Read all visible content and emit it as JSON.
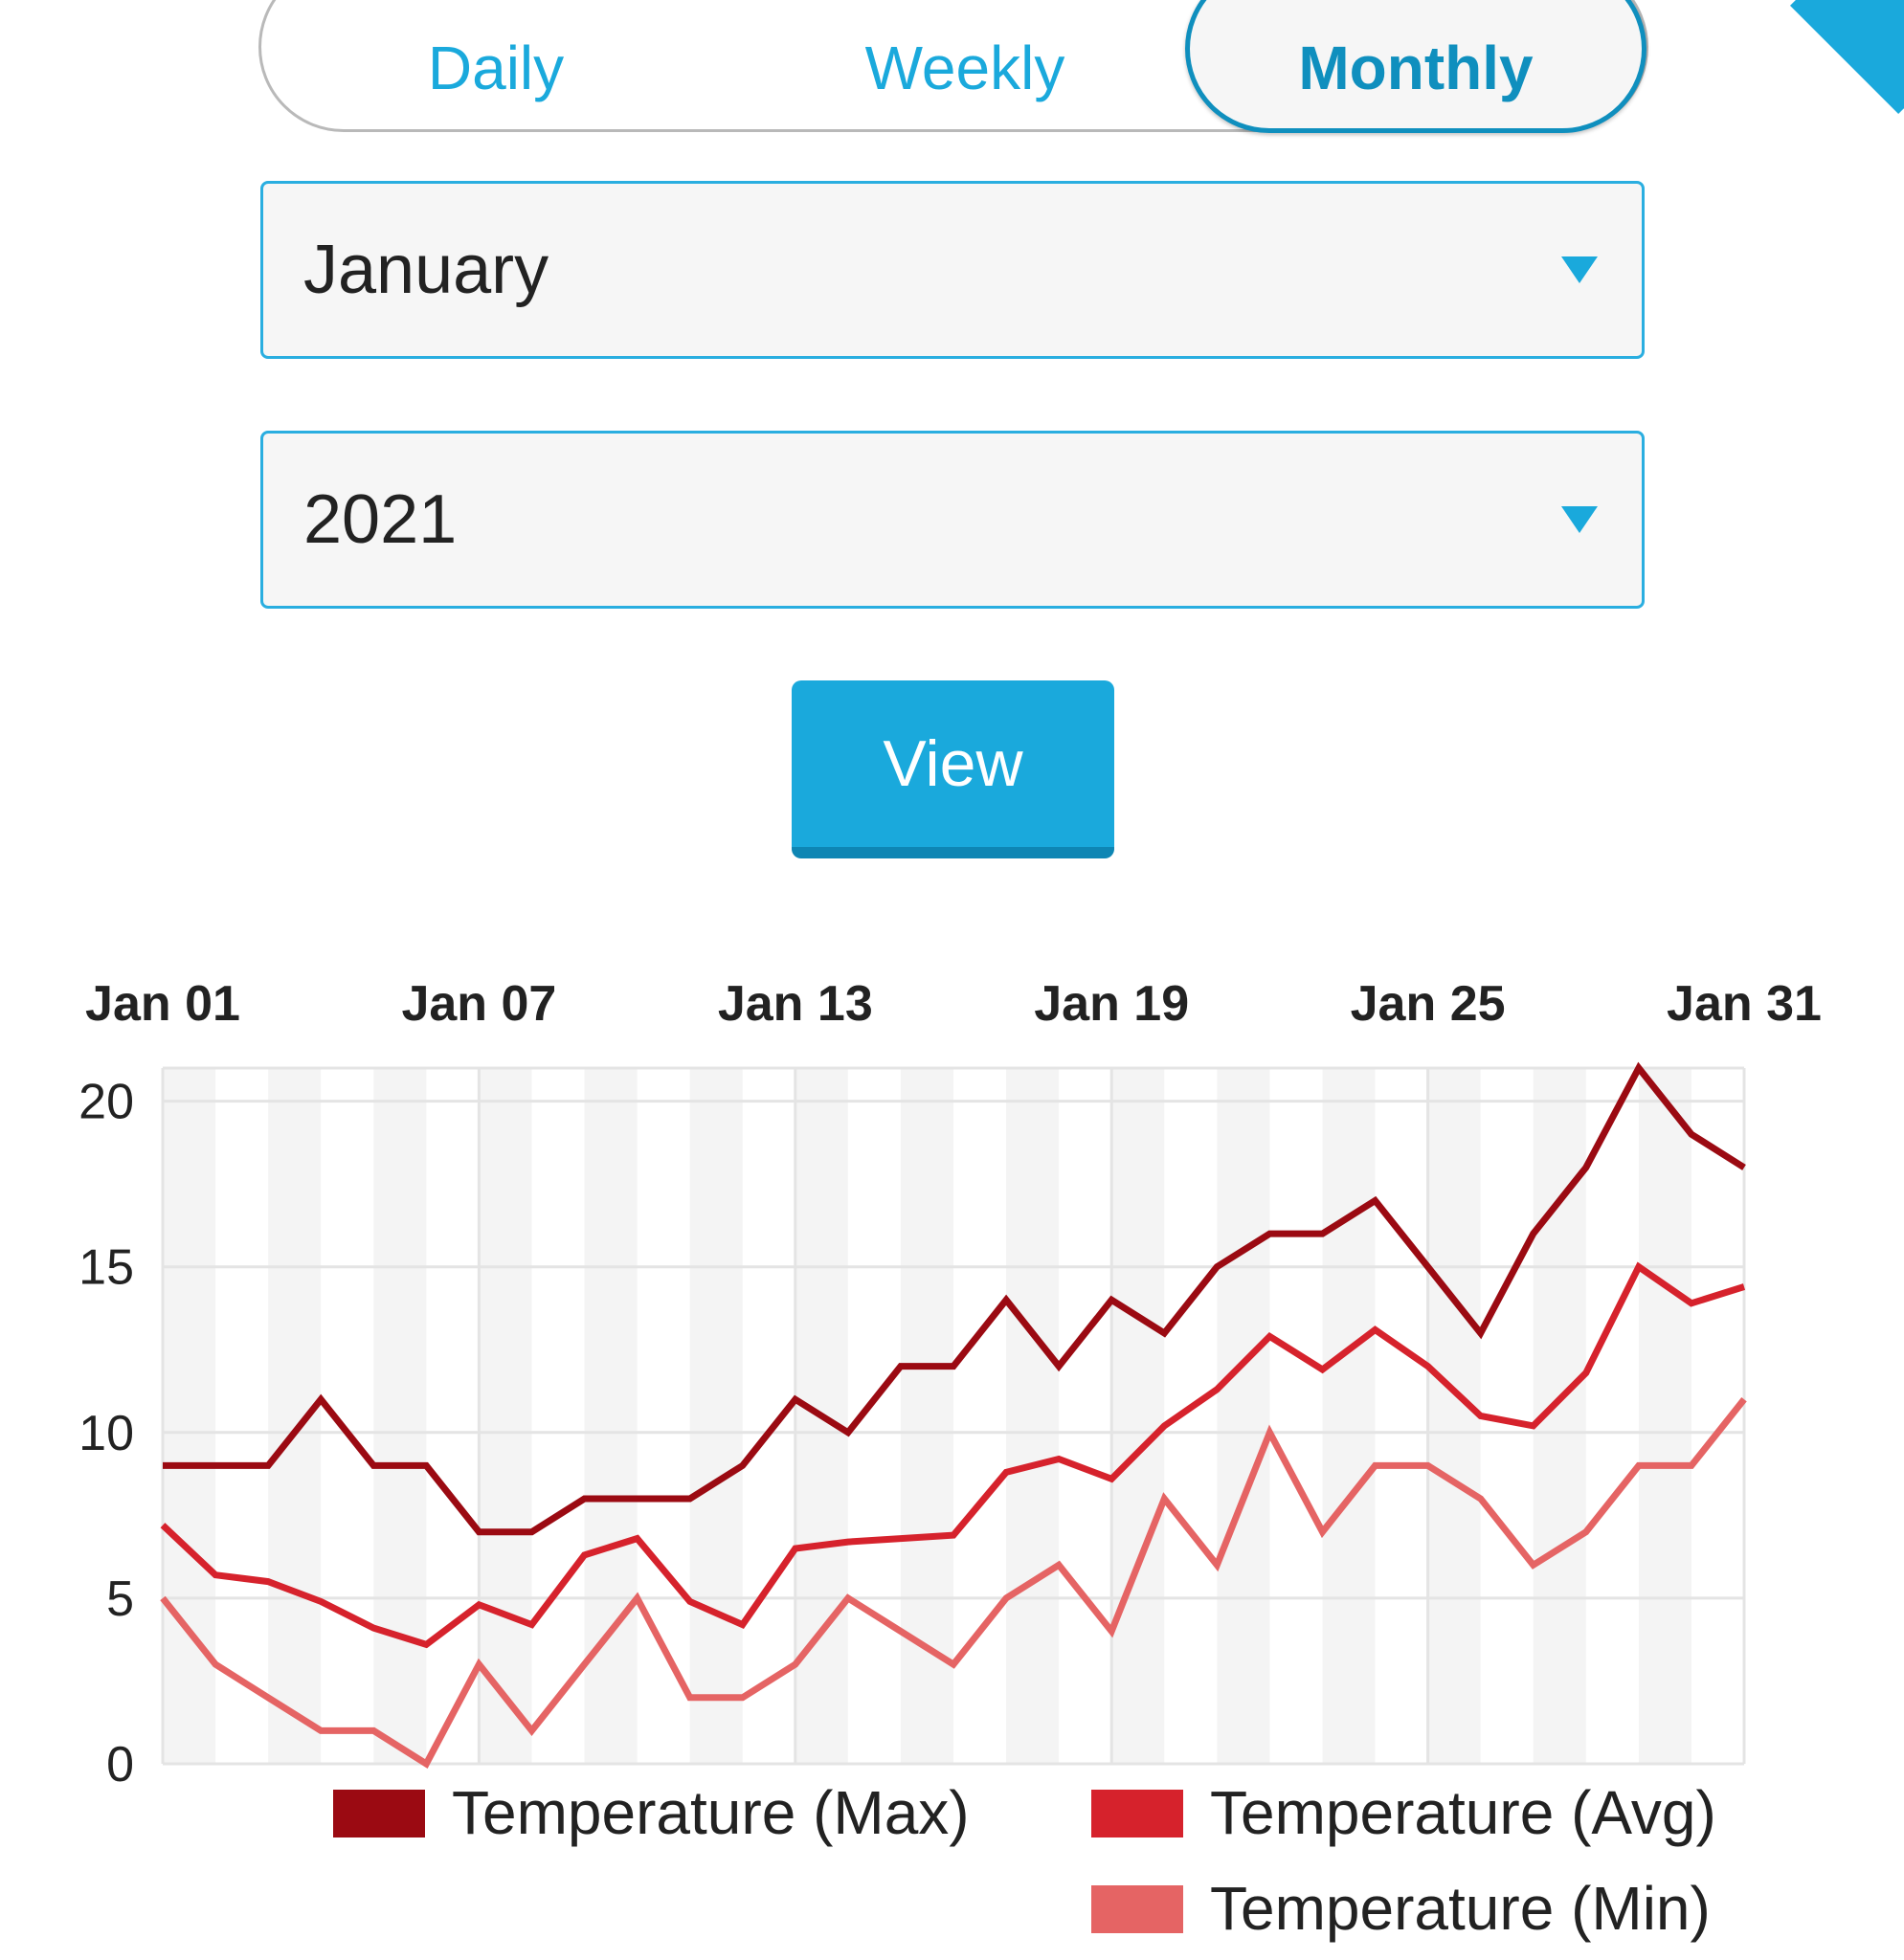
{
  "tabs": [
    {
      "label": "Daily",
      "selected": false
    },
    {
      "label": "Weekly",
      "selected": false
    },
    {
      "label": "Monthly",
      "selected": true
    }
  ],
  "month_select": {
    "value": "January"
  },
  "year_select": {
    "value": "2021"
  },
  "view_button": {
    "label": "View"
  },
  "colors": {
    "accent": "#1aa9dc",
    "max": "#9b0a12",
    "avg": "#d6222c",
    "min": "#e56464"
  },
  "chart_data": {
    "type": "line",
    "title": "",
    "xlabel": "",
    "ylabel": "",
    "x": [
      "Jan 01",
      "Jan 02",
      "Jan 03",
      "Jan 04",
      "Jan 05",
      "Jan 06",
      "Jan 07",
      "Jan 08",
      "Jan 09",
      "Jan 10",
      "Jan 11",
      "Jan 12",
      "Jan 13",
      "Jan 14",
      "Jan 15",
      "Jan 16",
      "Jan 17",
      "Jan 18",
      "Jan 19",
      "Jan 20",
      "Jan 21",
      "Jan 22",
      "Jan 23",
      "Jan 24",
      "Jan 25",
      "Jan 26",
      "Jan 27",
      "Jan 28",
      "Jan 29",
      "Jan 30",
      "Jan 31"
    ],
    "x_tick_labels": [
      "Jan 01",
      "Jan 07",
      "Jan 13",
      "Jan 19",
      "Jan 25",
      "Jan 31"
    ],
    "y_ticks": [
      "0",
      "5",
      "10",
      "15",
      "20"
    ],
    "ylim": [
      0,
      21
    ],
    "grid": true,
    "legend_position": "bottom-right",
    "series": [
      {
        "name": "Temperature (Max)",
        "color": "#9b0a12",
        "values": [
          9,
          9,
          9,
          11,
          9,
          9,
          7,
          7,
          8,
          8,
          8,
          9,
          11,
          10,
          12,
          12,
          14,
          12,
          14,
          13,
          15,
          16,
          16,
          17,
          15,
          13,
          16,
          18,
          21,
          19,
          18
        ]
      },
      {
        "name": "Temperature (Avg)",
        "color": "#d6222c",
        "values": [
          7.2,
          5.7,
          5.5,
          4.9,
          4.1,
          3.6,
          4.8,
          4.2,
          6.3,
          6.8,
          4.9,
          4.2,
          6.5,
          6.7,
          6.8,
          6.9,
          8.8,
          9.2,
          8.6,
          10.2,
          11.3,
          12.9,
          11.9,
          13.1,
          12,
          10.5,
          10.2,
          11.8,
          15,
          13.9,
          14.4
        ]
      },
      {
        "name": "Temperature (Min)",
        "color": "#e56464",
        "values": [
          5,
          3,
          2,
          1,
          1,
          0,
          3,
          1,
          3,
          5,
          2,
          2,
          3,
          5,
          4,
          3,
          5,
          6,
          4,
          8,
          6,
          10,
          7,
          9,
          9,
          8,
          6,
          7,
          9,
          9,
          11
        ]
      }
    ]
  }
}
